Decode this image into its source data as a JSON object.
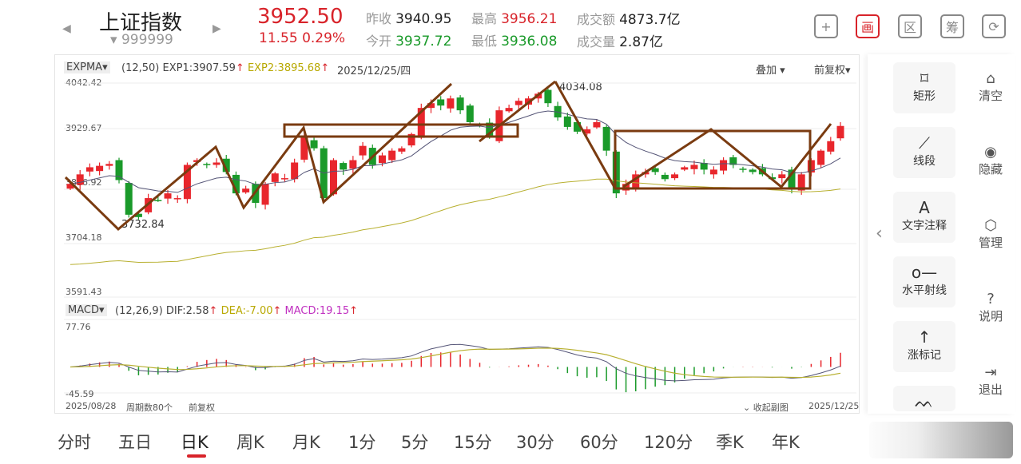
{
  "header": {
    "name": "上证指数",
    "code": "999999",
    "price": "3952.50",
    "change": "11.55",
    "change_pct": "0.29%",
    "prev_close_label": "昨收",
    "prev_close": "3940.95",
    "high_label": "最高",
    "high": "3956.21",
    "turnover_label": "成交额",
    "turnover": "4873.7亿",
    "open_label": "今开",
    "open": "3937.72",
    "low_label": "最低",
    "low": "3936.08",
    "volume_label": "成交量",
    "volume": "2.87亿"
  },
  "top_icons": [
    {
      "name": "add-icon",
      "glyph": "+"
    },
    {
      "name": "draw-icon",
      "glyph": "画"
    },
    {
      "name": "range-icon",
      "glyph": "区"
    },
    {
      "name": "chips-icon",
      "glyph": "筹"
    },
    {
      "name": "rotate-icon",
      "glyph": "⟳"
    }
  ],
  "main": {
    "indicator": "EXPMA",
    "params": "(12,50)",
    "exp1": "EXP1:3907.59",
    "exp2": "EXP2:3895.68",
    "date": "2025/12/25/四",
    "overlay": "叠加",
    "adjust": "前复权",
    "y_ticks": [
      "4042.42",
      "3929.67",
      "3816.92",
      "3704.18",
      "3591.43"
    ],
    "high_mark": "4034.08",
    "low_mark": "3732.84"
  },
  "sub": {
    "indicator": "MACD",
    "params": "(12,26,9)",
    "dif": "DIF:2.58",
    "dea": "DEA:-7.00",
    "macd": "MACD:19.15",
    "y_max": "77.76",
    "y_min": "-45.59"
  },
  "footer": {
    "start": "2025/08/28",
    "periods": "周期数80个",
    "adjust": "前复权",
    "collapse": "收起副图",
    "end": "2025/12/25"
  },
  "tools": [
    {
      "icon": "rectangle-icon",
      "glyph": "⌑",
      "label": "矩形"
    },
    {
      "icon": "line-segment-icon",
      "glyph": "⟋",
      "label": "线段"
    },
    {
      "icon": "text-icon",
      "glyph": "A",
      "label": "文字注释"
    },
    {
      "icon": "horizontal-ray-icon",
      "glyph": "o—",
      "label": "水平射线"
    },
    {
      "icon": "up-mark-icon",
      "glyph": "↑",
      "label": "涨标记"
    },
    {
      "icon": "wave-icon",
      "glyph": "ᨓ",
      "label": ""
    }
  ],
  "side": [
    {
      "icon": "broom-icon",
      "glyph": "⌂",
      "label": "清空"
    },
    {
      "icon": "eye-icon",
      "glyph": "◉",
      "label": "隐藏"
    },
    {
      "icon": "settings-icon",
      "glyph": "⬡",
      "label": "管理"
    },
    {
      "icon": "help-icon",
      "glyph": "?",
      "label": "说明"
    },
    {
      "icon": "exit-icon",
      "glyph": "⇥",
      "label": "退出"
    }
  ],
  "periods": [
    "分时",
    "五日",
    "日K",
    "周K",
    "月K",
    "1分",
    "5分",
    "15分",
    "30分",
    "60分",
    "120分",
    "季K",
    "年K"
  ],
  "active_period": "日K",
  "colors": {
    "up": "#e8262c",
    "down": "#1a9a2a",
    "drawing": "#7a3b10",
    "exp1": "#555577",
    "exp2": "#b8b030"
  },
  "chart_data": {
    "type": "candlestick",
    "y_range": [
      3591.43,
      4042.42
    ],
    "closes": [
      3830,
      3850,
      3865,
      3868,
      3872,
      3838,
      3765,
      3760,
      3800,
      3795,
      3810,
      3800,
      3870,
      3880,
      3870,
      3875,
      3855,
      3810,
      3820,
      3790,
      3830,
      3852,
      3842,
      3875,
      3930,
      3905,
      3800,
      3880,
      3860,
      3880,
      3910,
      3870,
      3890,
      3900,
      3905,
      3935,
      3990,
      4000,
      3995,
      4010,
      3985,
      3960,
      3955,
      3930,
      3985,
      3990,
      4005,
      4010,
      4020,
      4000,
      3970,
      3950,
      3940,
      3945,
      3960,
      3900,
      3810,
      3830,
      3850,
      3855,
      3855,
      3840,
      3850,
      3865,
      3870,
      3860,
      3860,
      3880,
      3870,
      3860,
      3855,
      3850,
      3840,
      3850,
      3820,
      3850,
      3880,
      3900,
      3920,
      3952
    ]
  }
}
